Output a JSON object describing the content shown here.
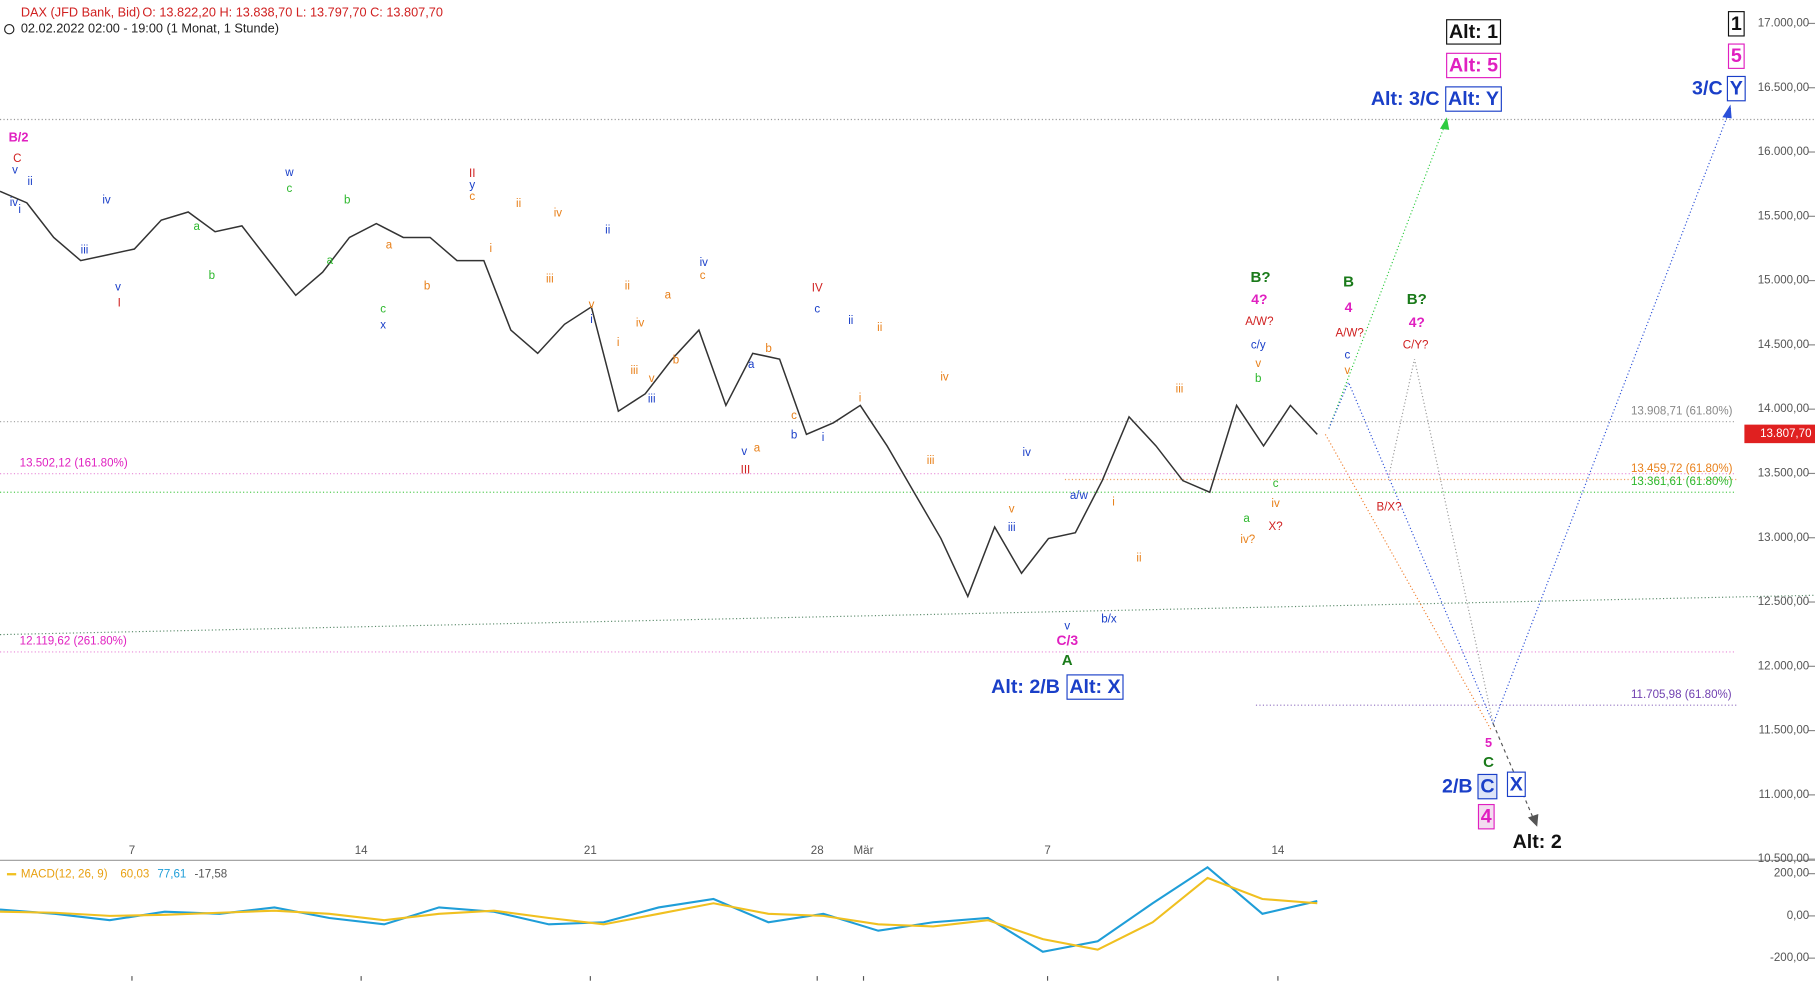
{
  "header": {
    "instrument": "DAX (JFD Bank, Bid)",
    "ohlc": "O: 13.822,20   H: 13.838,70   L: 13.797,70   C: 13.807,70",
    "period": "02.02.2022 02:00 - 19:00   (1 Monat, 1 Stunde)"
  },
  "chart_data": {
    "type": "line",
    "ylim": [
      10500,
      17000
    ],
    "yticks": [
      {
        "value": 17000,
        "label": "17.000,00"
      },
      {
        "value": 16500,
        "label": "16.500,00"
      },
      {
        "value": 16000,
        "label": "16.000,00"
      },
      {
        "value": 15500,
        "label": "15.500,00"
      },
      {
        "value": 15000,
        "label": "15.000,00"
      },
      {
        "value": 14500,
        "label": "14.500,00"
      },
      {
        "value": 14000,
        "label": "14.000,00"
      },
      {
        "value": 13500,
        "label": "13.500,00"
      },
      {
        "value": 13000,
        "label": "13.000,00"
      },
      {
        "value": 12500,
        "label": "12.500,00"
      },
      {
        "value": 12000,
        "label": "12.000,00"
      },
      {
        "value": 11500,
        "label": "11.500,00"
      },
      {
        "value": 11000,
        "label": "11.000,00"
      },
      {
        "value": 10500,
        "label": "10.500,00"
      }
    ],
    "x_labels": [
      "7",
      "14",
      "21",
      "28",
      "Mär",
      "7",
      "14"
    ],
    "price": {
      "color": "#333333",
      "values": [
        15695,
        15605,
        15335,
        15155,
        15200,
        15245,
        15470,
        15533,
        15380,
        15425,
        15155,
        14885,
        15065,
        15335,
        15443,
        15335,
        15335,
        15155,
        15155,
        14615,
        14434,
        14660,
        14795,
        13984,
        14119,
        14389,
        14615,
        14029,
        14434,
        14389,
        13804,
        13894,
        14029,
        13714,
        13354,
        12994,
        12544,
        13084,
        12724,
        12994,
        13039,
        13444,
        13940,
        13714,
        13444,
        13354,
        14029,
        13714,
        14029,
        13804
      ]
    },
    "current_price": {
      "value": 13807.7,
      "label": "13.807,70"
    },
    "fib_levels": [
      "13.502,12 (161.80%)",
      "12.119,62 (261.80%)",
      "13.908,71 (61.80%)",
      "13.459,72 (61.80%)",
      "13.361,61 (61.80%)",
      "11.705,98 (61.80%)"
    ],
    "wave_labels": [
      "B/2",
      "C",
      "v",
      "ii",
      "iv",
      "i",
      "iii",
      "iv",
      "v",
      "I",
      "a",
      "b",
      "w",
      "c",
      "a",
      "b",
      "c",
      "x",
      "a",
      "b",
      "II",
      "y",
      "c",
      "ii",
      "i",
      "iv",
      "iii",
      "v",
      "i",
      "ii",
      "ii",
      "iv",
      "a",
      "i",
      "iii",
      "v",
      "iii",
      "b",
      "iv",
      "c",
      "a",
      "b",
      "c",
      "b",
      "v",
      "a",
      "III",
      "IV",
      "c",
      "ii",
      "ii",
      "i",
      "i",
      "iv",
      "iii",
      "iv",
      "v",
      "iii",
      "a/w",
      "i",
      "ii",
      "v",
      "b/x",
      "C/3",
      "A",
      "iii",
      "B?",
      "4?",
      "A/W?",
      "c/y",
      "v",
      "b",
      "c",
      "a",
      "iv",
      "iv?",
      "X?",
      "B",
      "4",
      "A/W?",
      "c",
      "v",
      "B?",
      "4?",
      "C/Y?",
      "B/X?",
      "5",
      "C",
      "2/B",
      "C",
      "X",
      "4",
      "Alt: 2",
      "Alt: 1",
      "Alt: 5",
      "Alt: 3/C",
      "Alt: Y",
      "1",
      "5",
      "3/C",
      "Y",
      "Alt: 2/B",
      "Alt: X"
    ]
  },
  "macd": {
    "type": "line",
    "title": "MACD(12, 26, 9)",
    "readout": [
      "60,03",
      "77,61",
      "-17,58"
    ],
    "ylim": [
      -300,
      250
    ],
    "yticks": [
      {
        "value": 200,
        "label": "200,00"
      },
      {
        "value": 0,
        "label": "0,00"
      },
      {
        "value": -200,
        "label": "-200,00"
      }
    ],
    "series": [
      {
        "color": "#1f9ed8",
        "values": [
          30,
          10,
          -20,
          20,
          10,
          40,
          -10,
          -40,
          40,
          20,
          -40,
          -30,
          40,
          80,
          -30,
          10,
          -70,
          -30,
          -10,
          -170,
          -120,
          60,
          230,
          10,
          70
        ]
      },
      {
        "color": "#f0c020",
        "values": [
          20,
          15,
          0,
          5,
          15,
          25,
          10,
          -20,
          10,
          25,
          -10,
          -40,
          10,
          60,
          10,
          0,
          -40,
          -50,
          -20,
          -110,
          -160,
          -30,
          180,
          80,
          60
        ]
      }
    ]
  }
}
